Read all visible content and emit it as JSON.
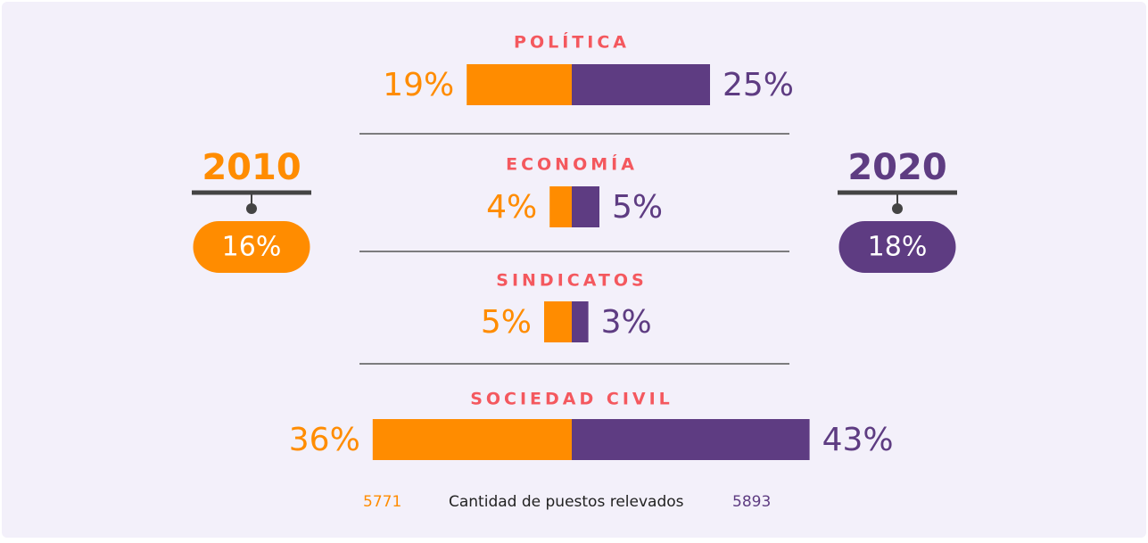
{
  "chart_data": {
    "type": "butterfly",
    "categories": [
      "POLÍTICA",
      "ECONOMÍA",
      "SINDICATOS",
      "SOCIEDAD CIVIL"
    ],
    "series": [
      {
        "name": "2010",
        "color": "#FF8C00",
        "values": [
          19,
          4,
          5,
          36
        ],
        "value_labels": [
          "19%",
          "4%",
          "5%",
          "36%"
        ],
        "total": 16,
        "total_label": "16%",
        "count": 5771
      },
      {
        "name": "2020",
        "color": "#5E3C82",
        "values": [
          25,
          5,
          3,
          43
        ],
        "value_labels": [
          "25%",
          "5%",
          "3%",
          "43%"
        ],
        "total": 18,
        "total_label": "18%",
        "count": 5893
      }
    ],
    "footer": "Cantidad de puestos relevados"
  }
}
